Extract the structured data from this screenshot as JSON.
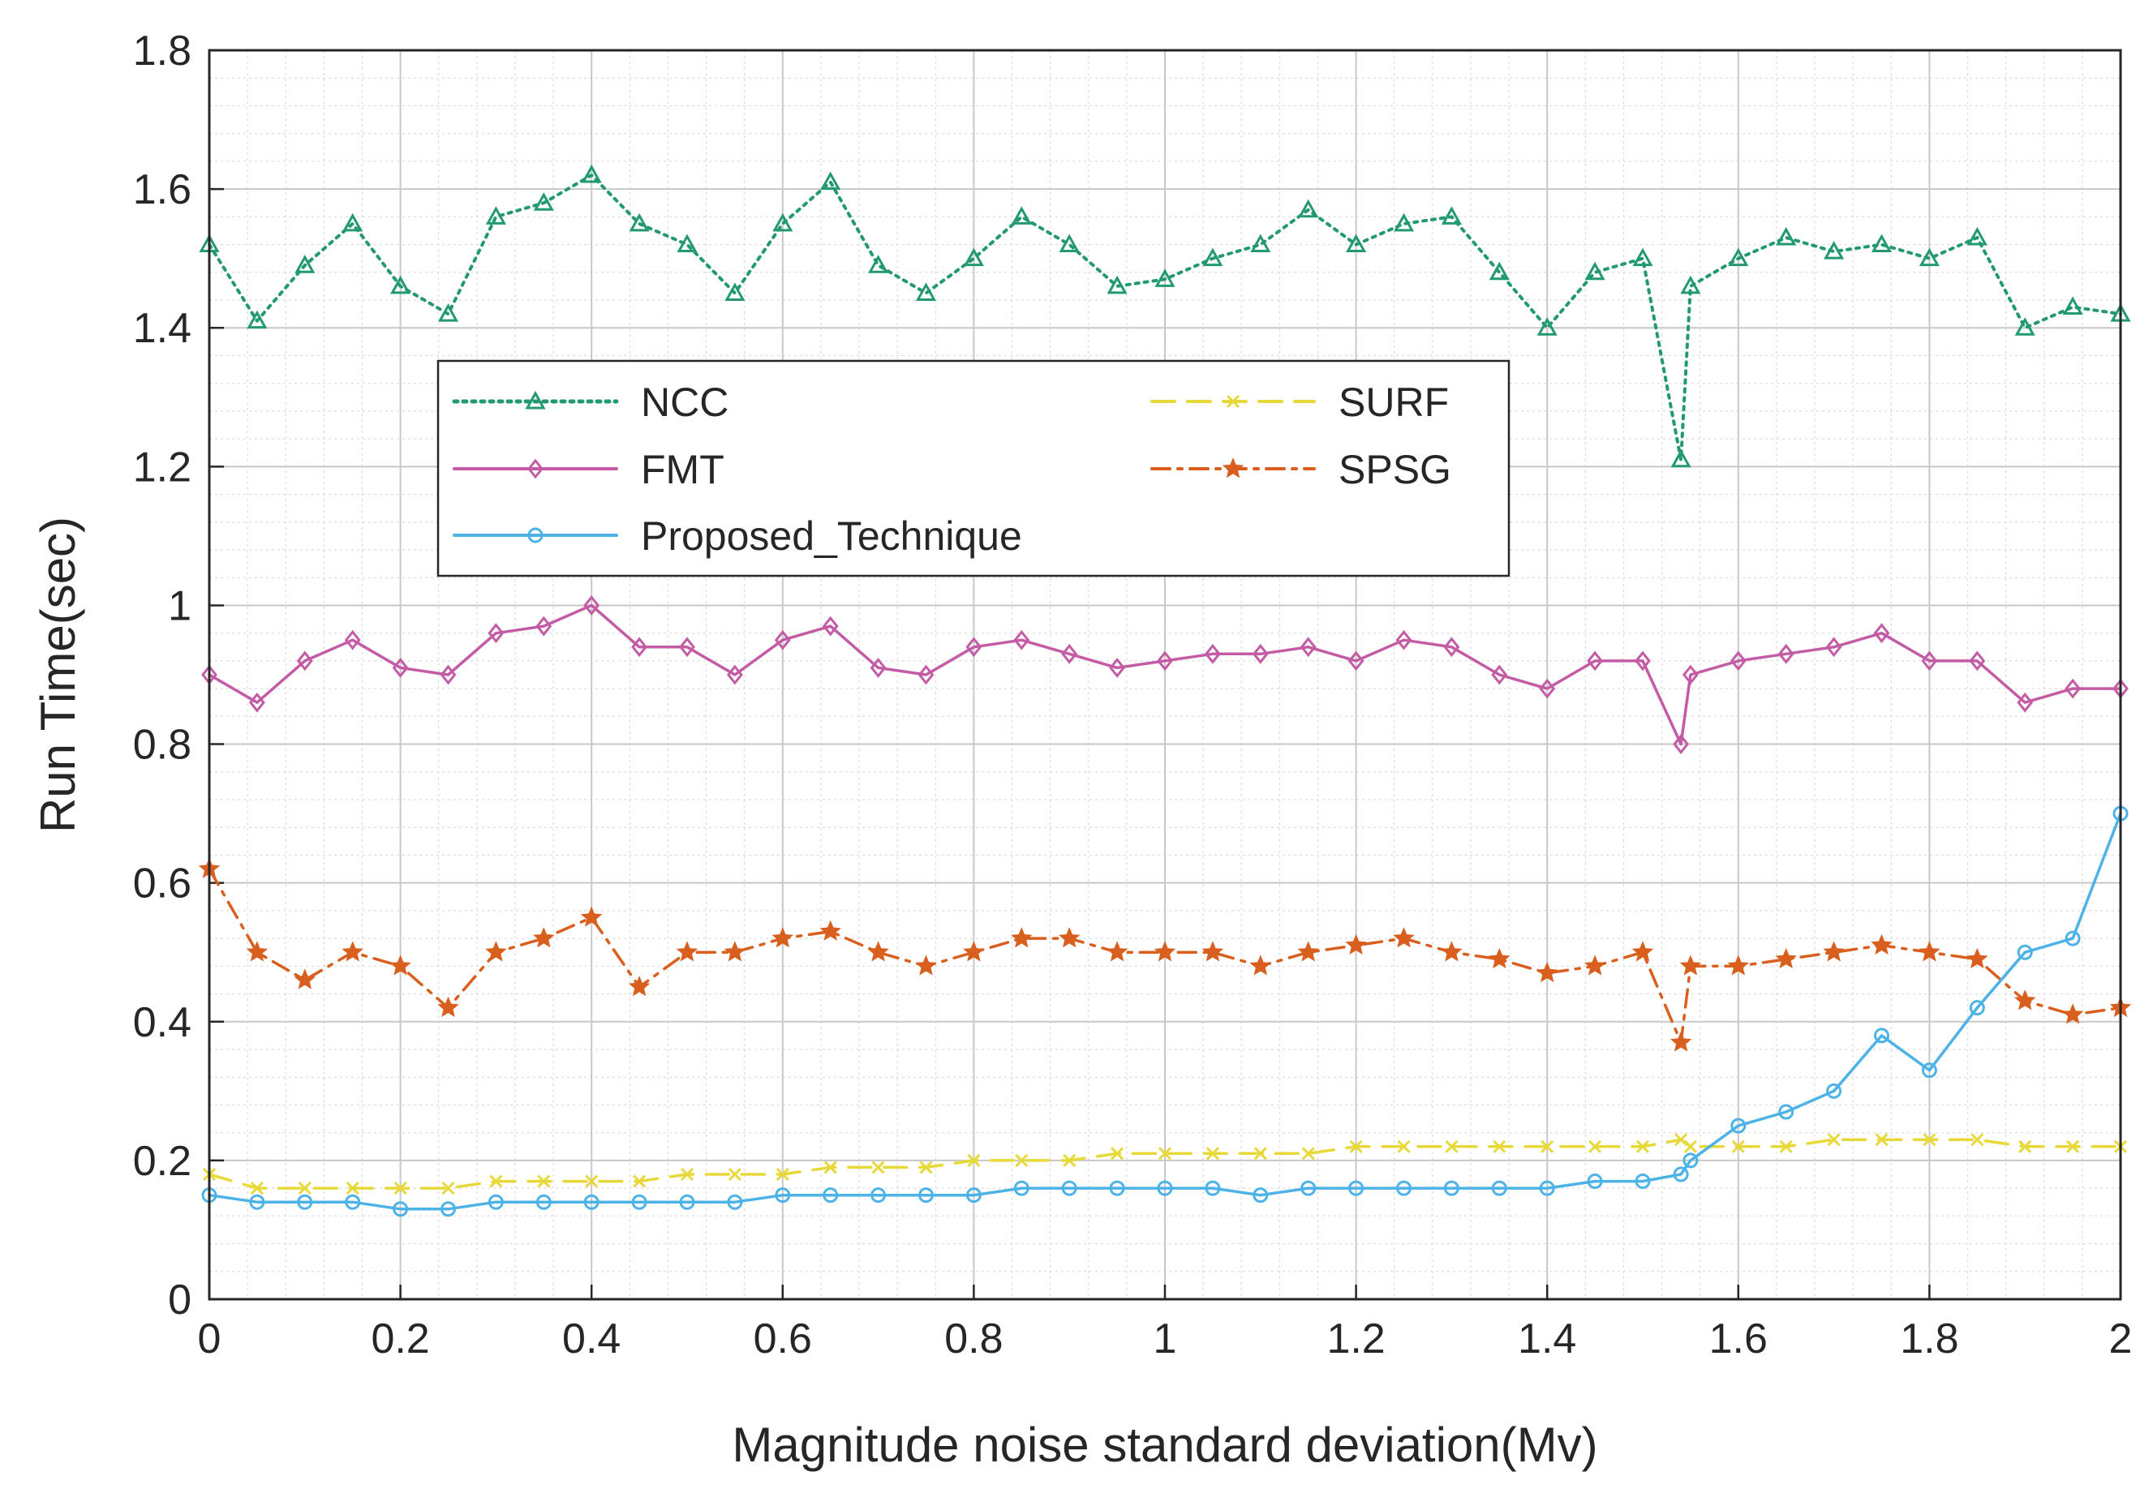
{
  "chart_data": {
    "type": "line",
    "title": "",
    "xlabel": "Magnitude noise standard deviation(Mv)",
    "ylabel": "Run Time(sec)",
    "xlim": [
      0,
      2
    ],
    "ylim": [
      0,
      1.8
    ],
    "xticks": [
      "0",
      "0.2",
      "0.4",
      "0.6",
      "0.8",
      "1",
      "1.2",
      "1.4",
      "1.6",
      "1.8",
      "2"
    ],
    "yticks": [
      "0",
      "0.2",
      "0.4",
      "0.6",
      "0.8",
      "1",
      "1.2",
      "1.4",
      "1.6",
      "1.8"
    ],
    "grid": true,
    "legend_position": "upper-left-center",
    "x": [
      0,
      0.05,
      0.1,
      0.15,
      0.2,
      0.25,
      0.3,
      0.35,
      0.4,
      0.45,
      0.5,
      0.55,
      0.6,
      0.65,
      0.7,
      0.75,
      0.8,
      0.85,
      0.9,
      0.95,
      1.0,
      1.05,
      1.1,
      1.15,
      1.2,
      1.25,
      1.3,
      1.35,
      1.4,
      1.45,
      1.5,
      1.54,
      1.55,
      1.6,
      1.65,
      1.7,
      1.75,
      1.8,
      1.85,
      1.9,
      1.95,
      2.0
    ],
    "series": [
      {
        "name": "NCC",
        "color": "#22996e",
        "style": "dotted",
        "marker": "triangle",
        "values": [
          1.52,
          1.41,
          1.49,
          1.55,
          1.46,
          1.42,
          1.56,
          1.58,
          1.62,
          1.55,
          1.52,
          1.45,
          1.55,
          1.61,
          1.49,
          1.45,
          1.5,
          1.56,
          1.52,
          1.46,
          1.47,
          1.5,
          1.52,
          1.57,
          1.52,
          1.55,
          1.56,
          1.48,
          1.4,
          1.48,
          1.5,
          1.21,
          1.46,
          1.5,
          1.53,
          1.51,
          1.52,
          1.5,
          1.53,
          1.4,
          1.43,
          1.42
        ]
      },
      {
        "name": "FMT",
        "color": "#c45ba5",
        "style": "solid",
        "marker": "diamond",
        "values": [
          0.9,
          0.86,
          0.92,
          0.95,
          0.91,
          0.9,
          0.96,
          0.97,
          1.0,
          0.94,
          0.94,
          0.9,
          0.95,
          0.97,
          0.91,
          0.9,
          0.94,
          0.95,
          0.93,
          0.91,
          0.92,
          0.93,
          0.93,
          0.94,
          0.92,
          0.95,
          0.94,
          0.9,
          0.88,
          0.92,
          0.92,
          0.8,
          0.9,
          0.92,
          0.93,
          0.94,
          0.96,
          0.92,
          0.92,
          0.86,
          0.88,
          0.88
        ]
      },
      {
        "name": "Proposed_Technique",
        "color": "#4db3e6",
        "style": "solid",
        "marker": "circle",
        "values": [
          0.15,
          0.14,
          0.14,
          0.14,
          0.13,
          0.13,
          0.14,
          0.14,
          0.14,
          0.14,
          0.14,
          0.14,
          0.15,
          0.15,
          0.15,
          0.15,
          0.15,
          0.16,
          0.16,
          0.16,
          0.16,
          0.16,
          0.15,
          0.16,
          0.16,
          0.16,
          0.16,
          0.16,
          0.16,
          0.17,
          0.17,
          0.18,
          0.2,
          0.25,
          0.27,
          0.3,
          0.38,
          0.33,
          0.42,
          0.5,
          0.52,
          0.7
        ]
      },
      {
        "name": "SURF",
        "color": "#e8d93a",
        "style": "dashed",
        "marker": "x",
        "values": [
          0.18,
          0.16,
          0.16,
          0.16,
          0.16,
          0.16,
          0.17,
          0.17,
          0.17,
          0.17,
          0.18,
          0.18,
          0.18,
          0.19,
          0.19,
          0.19,
          0.2,
          0.2,
          0.2,
          0.21,
          0.21,
          0.21,
          0.21,
          0.21,
          0.22,
          0.22,
          0.22,
          0.22,
          0.22,
          0.22,
          0.22,
          0.23,
          0.22,
          0.22,
          0.22,
          0.23,
          0.23,
          0.23,
          0.23,
          0.22,
          0.22,
          0.22
        ]
      },
      {
        "name": "SPSG",
        "color": "#d95f1e",
        "style": "dashdot",
        "marker": "star",
        "values": [
          0.62,
          0.5,
          0.46,
          0.5,
          0.48,
          0.42,
          0.5,
          0.52,
          0.55,
          0.45,
          0.5,
          0.5,
          0.52,
          0.53,
          0.5,
          0.48,
          0.5,
          0.52,
          0.52,
          0.5,
          0.5,
          0.5,
          0.48,
          0.5,
          0.51,
          0.52,
          0.5,
          0.49,
          0.47,
          0.48,
          0.5,
          0.37,
          0.48,
          0.48,
          0.49,
          0.5,
          0.51,
          0.5,
          0.49,
          0.43,
          0.41,
          0.42
        ]
      }
    ]
  }
}
